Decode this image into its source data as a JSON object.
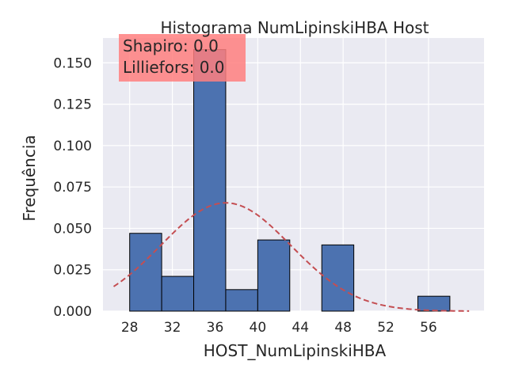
{
  "chart_data": {
    "type": "bar",
    "title": "Histograma NumLipinskiHBA Host",
    "xlabel": "HOST_NumLipinskiHBA",
    "ylabel": "Frequência",
    "xlim": [
      25.5,
      61.2
    ],
    "ylim": [
      0,
      0.165
    ],
    "x_ticks": [
      28,
      32,
      36,
      40,
      44,
      48,
      52,
      56
    ],
    "y_ticks": [
      0.0,
      0.025,
      0.05,
      0.075,
      0.1,
      0.125,
      0.15
    ],
    "y_tick_labels": [
      "0.000",
      "0.025",
      "0.050",
      "0.075",
      "0.100",
      "0.125",
      "0.150"
    ],
    "bins": [
      {
        "start": 28,
        "end": 31,
        "value": 0.047
      },
      {
        "start": 31,
        "end": 34,
        "value": 0.021
      },
      {
        "start": 34,
        "end": 37,
        "value": 0.158
      },
      {
        "start": 37,
        "end": 40,
        "value": 0.013
      },
      {
        "start": 40,
        "end": 43,
        "value": 0.043
      },
      {
        "start": 43,
        "end": 46,
        "value": 0.0
      },
      {
        "start": 46,
        "end": 49,
        "value": 0.04
      },
      {
        "start": 49,
        "end": 52,
        "value": 0.0
      },
      {
        "start": 52,
        "end": 55,
        "value": 0.0
      },
      {
        "start": 55,
        "end": 58,
        "value": 0.009
      }
    ],
    "normal_fit": {
      "mean": 37.0,
      "std": 6.1,
      "x_range": [
        26.5,
        59.8
      ],
      "style": "dashed"
    },
    "annotation": {
      "lines": [
        "Shapiro: 0.0",
        "Lilliefors: 0.0"
      ]
    },
    "grid": true,
    "colors": {
      "bar": "#4c72b0",
      "bar_edge": "#000000",
      "fit_line": "#c44e52",
      "annotation_box": "#ff7f7f",
      "plot_background": "#eaeaf2",
      "grid": "#ffffff"
    }
  }
}
